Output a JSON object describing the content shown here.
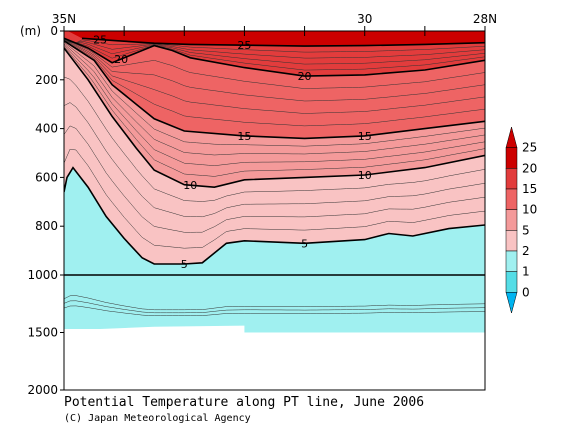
{
  "chart_data": {
    "type": "contour",
    "title": "Potential Temperature along PT line, June 2006",
    "credit": "(C) Japan Meteorological Agency",
    "x_axis": {
      "position": "top",
      "ticks": [
        {
          "lat": 35,
          "label": "35N"
        },
        {
          "lat": 34
        },
        {
          "lat": 33
        },
        {
          "lat": 32
        },
        {
          "lat": 31
        },
        {
          "lat": 30,
          "label": "30"
        },
        {
          "lat": 29
        },
        {
          "lat": 28,
          "label": "28N"
        }
      ],
      "range": [
        35,
        28
      ]
    },
    "y_axis": {
      "unit_label": "(m)",
      "segments": [
        {
          "from": 0,
          "to": 1000,
          "ticks": [
            0,
            200,
            400,
            600,
            800,
            1000
          ]
        },
        {
          "from": 1000,
          "to": 2000,
          "ticks": [
            1500,
            2000
          ]
        }
      ],
      "scale_break_depth": 1000
    },
    "bottom_depth_m": [
      {
        "lat": 35.0,
        "depth": 1470
      },
      {
        "lat": 34.4,
        "depth": 1470
      },
      {
        "lat": 33.5,
        "depth": 1450
      },
      {
        "lat": 32.0,
        "depth": 1440
      },
      {
        "lat": 32.0,
        "depth": 1500
      },
      {
        "lat": 28.0,
        "depth": 1500
      }
    ],
    "isotherms": [
      {
        "value": 25,
        "label": "25",
        "points": [
          [
            34.7,
            30
          ],
          [
            34.1,
            40
          ],
          [
            33.5,
            50
          ],
          [
            32.9,
            55
          ],
          [
            32.0,
            58
          ],
          [
            31.0,
            62
          ],
          [
            30.0,
            60
          ],
          [
            29.0,
            55
          ],
          [
            28.0,
            48
          ]
        ]
      },
      {
        "value": 20,
        "label": "20",
        "points": [
          [
            35.0,
            30
          ],
          [
            34.6,
            70
          ],
          [
            34.2,
            130
          ],
          [
            33.9,
            100
          ],
          [
            33.5,
            60
          ],
          [
            33.2,
            80
          ],
          [
            32.9,
            110
          ],
          [
            32.0,
            150
          ],
          [
            31.0,
            185
          ],
          [
            30.0,
            180
          ],
          [
            29.0,
            160
          ],
          [
            28.0,
            120
          ]
        ]
      },
      {
        "value": 15,
        "label": "15",
        "points": [
          [
            35.0,
            40
          ],
          [
            34.5,
            120
          ],
          [
            34.2,
            220
          ],
          [
            33.8,
            300
          ],
          [
            33.5,
            360
          ],
          [
            33.0,
            410
          ],
          [
            32.0,
            430
          ],
          [
            31.0,
            440
          ],
          [
            30.0,
            430
          ],
          [
            29.0,
            400
          ],
          [
            28.0,
            370
          ]
        ]
      },
      {
        "value": 10,
        "label": "10",
        "points": [
          [
            35.0,
            70
          ],
          [
            34.6,
            200
          ],
          [
            34.2,
            350
          ],
          [
            33.8,
            480
          ],
          [
            33.5,
            570
          ],
          [
            33.0,
            630
          ],
          [
            32.5,
            640
          ],
          [
            32.0,
            610
          ],
          [
            31.0,
            600
          ],
          [
            30.0,
            590
          ],
          [
            29.0,
            560
          ],
          [
            28.0,
            510
          ]
        ]
      },
      {
        "value": 5,
        "label": "5",
        "points": [
          [
            35.0,
            660
          ],
          [
            34.95,
            600
          ],
          [
            34.85,
            560
          ],
          [
            34.6,
            640
          ],
          [
            34.3,
            760
          ],
          [
            34.0,
            850
          ],
          [
            33.7,
            930
          ],
          [
            33.5,
            955
          ],
          [
            33.0,
            955
          ],
          [
            32.7,
            950
          ],
          [
            32.3,
            870
          ],
          [
            32.0,
            860
          ],
          [
            31.0,
            870
          ],
          [
            30.0,
            855
          ],
          [
            29.6,
            830
          ],
          [
            29.2,
            840
          ],
          [
            28.6,
            810
          ],
          [
            28.0,
            795
          ]
        ]
      }
    ],
    "colorbar": {
      "levels": [
        0,
        1,
        2,
        5,
        10,
        15,
        20,
        25
      ],
      "colors": [
        "#00b4f0",
        "#55dde6",
        "#a0f0f0",
        "#f9c3c3",
        "#f49a9a",
        "#ee6464",
        "#e23c3c",
        "#cc0000"
      ],
      "labels": [
        "0",
        "1",
        "2",
        "5",
        "10",
        "15",
        "20",
        "25"
      ]
    }
  }
}
